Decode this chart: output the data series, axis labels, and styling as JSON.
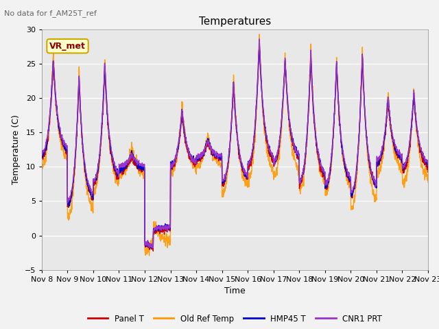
{
  "title": "Temperatures",
  "xlabel": "Time",
  "ylabel": "Temperature (C)",
  "ylim": [
    -5,
    30
  ],
  "yticks": [
    -5,
    0,
    5,
    10,
    15,
    20,
    25,
    30
  ],
  "annotation_text": "No data for f_AM25T_ref",
  "box_label": "VR_met",
  "xticklabels": [
    "Nov 8",
    "Nov 9",
    "Nov 10",
    "Nov 11",
    "Nov 12",
    "Nov 13",
    "Nov 14",
    "Nov 15",
    "Nov 16",
    "Nov 17",
    "Nov 18",
    "Nov 19",
    "Nov 20",
    "Nov 21",
    "Nov 22",
    "Nov 23"
  ],
  "colors": {
    "panel_t": "#cc0000",
    "old_ref": "#ff9900",
    "hmp45": "#0000cc",
    "cnr1": "#9933cc"
  },
  "legend_labels": [
    "Panel T",
    "Old Ref Temp",
    "HMP45 T",
    "CNR1 PRT"
  ],
  "bg_color": "#e8e8e8",
  "grid_color": "#ffffff",
  "day_peaks": [
    25.0,
    22.5,
    24.5,
    11.5,
    0.5,
    17.5,
    13.5,
    22.0,
    28.0,
    25.5,
    26.0,
    25.0,
    26.0,
    19.5,
    20.5
  ],
  "day_nights": [
    11.5,
    4.5,
    7.5,
    9.5,
    1.0,
    10.0,
    11.0,
    7.5,
    10.0,
    10.5,
    7.5,
    7.0,
    6.0,
    10.5,
    9.5
  ],
  "peak_time": [
    0.45,
    0.45,
    0.45,
    0.5,
    0.35,
    0.45,
    0.45,
    0.45,
    0.45,
    0.45,
    0.45,
    0.45,
    0.45,
    0.45,
    0.45
  ]
}
